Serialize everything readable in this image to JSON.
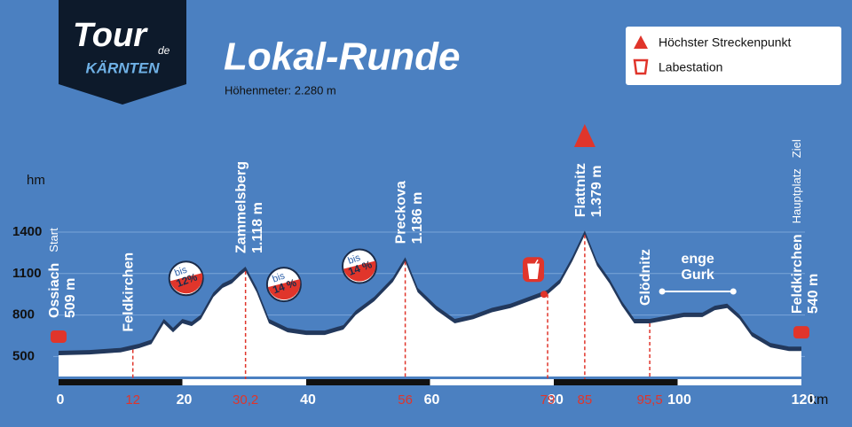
{
  "logo": {
    "main": "Tour",
    "de": "de",
    "region": "KÄRNTEN"
  },
  "legend": [
    "Höchster Streckenpunkt",
    "Labestation"
  ],
  "chart_data": {
    "type": "area",
    "title": "Lokal-Runde",
    "subtitle": "Höhenmeter: 2.280 m",
    "x_label": "km",
    "y_label": "hm",
    "x": [
      0,
      5,
      10,
      13,
      15,
      17,
      18.5,
      20,
      21.5,
      23,
      25,
      26.5,
      28,
      29.2,
      30.2,
      32,
      34,
      37,
      40,
      43,
      46,
      48,
      51,
      54,
      56,
      58,
      61,
      64,
      67,
      70,
      73,
      76,
      79,
      81,
      83,
      85,
      87,
      89,
      91,
      93,
      95.5,
      98,
      101,
      104,
      106,
      108,
      110,
      112,
      115,
      118,
      120
    ],
    "values": [
      509,
      515,
      530,
      560,
      590,
      740,
      675,
      740,
      720,
      770,
      930,
      996,
      1028,
      1080,
      1118,
      965,
      740,
      675,
      656,
      656,
      695,
      800,
      900,
      1040,
      1186,
      965,
      835,
      740,
      770,
      820,
      850,
      900,
      950,
      1028,
      1190,
      1379,
      1156,
      1028,
      868,
      740,
      740,
      760,
      785,
      785,
      835,
      850,
      770,
      645,
      566,
      540,
      540
    ],
    "color": "#ffffff",
    "xlim": [
      0,
      120
    ],
    "xticks": [
      0,
      20,
      40,
      60,
      80,
      100,
      120
    ],
    "ylim": [
      400,
      1500
    ],
    "yticks": [
      500,
      800,
      1100,
      1400
    ],
    "grid": true,
    "km_marks": [
      12,
      {
        "value": 30.2,
        "label": "30,2"
      },
      56,
      79,
      85,
      {
        "value": 95.5,
        "label": "95,5"
      }
    ],
    "places": [
      {
        "km": 0,
        "name": "Ossiach",
        "elevation": "509 m",
        "notes": [
          "Start"
        ]
      },
      {
        "km": 12,
        "name": "Feldkirchen"
      },
      {
        "km": 30.2,
        "name": "Zammelsberg",
        "elevation": "1.118 m"
      },
      {
        "km": 56,
        "name": "Preckova",
        "elevation": "1.186 m"
      },
      {
        "km": 85,
        "name": "Flattnitz",
        "elevation": "1.379 m"
      },
      {
        "km": 95.5,
        "name": "Glödnitz"
      },
      {
        "km": 120,
        "name": "Feldkirchen",
        "elevation": "540 m",
        "notes": [
          "Hauptplatz",
          "Ziel"
        ]
      }
    ],
    "gradients": [
      {
        "km": 20.6,
        "prefix": "bis",
        "grade": {
          "value": 12,
          "label": "12%"
        }
      },
      {
        "km": 36.4,
        "prefix": "bis",
        "grade": {
          "value": 14,
          "label": "14 %"
        }
      },
      {
        "km": 48.6,
        "prefix": "bis",
        "grade": {
          "value": 14,
          "label": "14 %"
        }
      }
    ],
    "segments": [
      {
        "label": [
          "enge",
          "Gurk"
        ],
        "from": 97.5,
        "to": 109
      }
    ],
    "highest": 85,
    "station": 79
  }
}
